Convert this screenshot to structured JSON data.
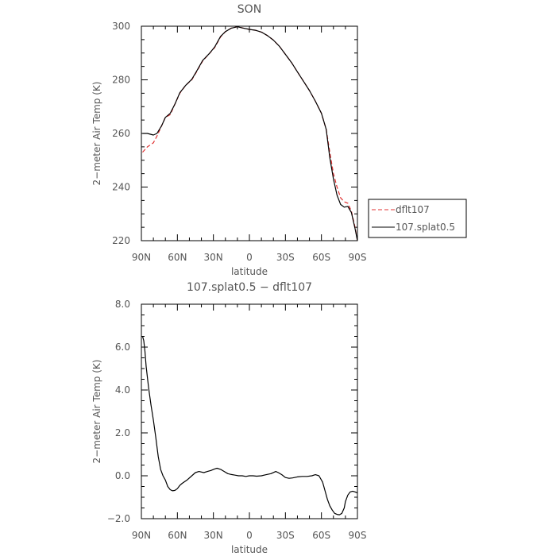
{
  "chart_data": [
    {
      "type": "line",
      "title": "SON",
      "xlabel": "latitude",
      "ylabel": "2−meter Air Temp (K)",
      "xlim": [
        90,
        -90
      ],
      "ylim": [
        220,
        300
      ],
      "xticks": [
        90,
        60,
        30,
        0,
        -30,
        -60,
        -90
      ],
      "xtick_labels": [
        "90N",
        "60N",
        "30N",
        "0",
        "30S",
        "60S",
        "90S"
      ],
      "yticks": [
        220,
        240,
        260,
        280,
        300
      ],
      "ytick_labels": [
        "220",
        "240",
        "260",
        "280",
        "300"
      ],
      "legend": {
        "position": "right",
        "entries": [
          "dflt107",
          "107.splat0.5"
        ]
      },
      "series": [
        {
          "name": "dflt107",
          "color": "#e03030",
          "style": "dashed",
          "x": [
            89,
            85,
            80,
            77,
            73,
            70,
            66,
            62,
            58,
            53,
            48,
            44,
            39,
            33,
            29,
            24,
            20,
            15,
            10,
            5,
            0,
            -5,
            -10,
            -15,
            -20,
            -25,
            -30,
            -35,
            -40,
            -45,
            -50,
            -55,
            -60,
            -64,
            -67,
            -70,
            -73,
            -76,
            -79,
            -82,
            -85,
            -88,
            -90
          ],
          "y": [
            253,
            255,
            256.5,
            259,
            263,
            266,
            267,
            271,
            275,
            278,
            280,
            283,
            287,
            290,
            292,
            296,
            298,
            299.3,
            299.8,
            299.3,
            298.8,
            298.5,
            297.8,
            296.5,
            294.8,
            292.5,
            289.5,
            286.5,
            283,
            279.5,
            276,
            272,
            267.5,
            261.5,
            253,
            245,
            240,
            236,
            234.5,
            234,
            231,
            225,
            220
          ]
        },
        {
          "name": "107.splat0.5",
          "color": "#000000",
          "style": "solid",
          "x": [
            89,
            85,
            80,
            77,
            73,
            70,
            66,
            62,
            58,
            53,
            48,
            44,
            39,
            33,
            29,
            24,
            20,
            15,
            10,
            5,
            0,
            -5,
            -10,
            -15,
            -20,
            -25,
            -30,
            -35,
            -40,
            -45,
            -50,
            -55,
            -60,
            -64,
            -67,
            -70,
            -73,
            -76,
            -79,
            -82,
            -85,
            -88,
            -90
          ],
          "y": [
            260,
            260,
            259.4,
            260,
            263,
            266,
            267.5,
            271,
            275.2,
            278,
            280.2,
            283.2,
            287.2,
            290,
            292.2,
            296.2,
            298,
            299.3,
            299.8,
            299.3,
            298.8,
            298.5,
            297.8,
            296.5,
            294.8,
            292.5,
            289.5,
            286.5,
            283,
            279.5,
            276,
            272,
            267.5,
            261.5,
            251,
            243,
            237,
            233.5,
            232.5,
            232.8,
            230.5,
            224.5,
            220
          ]
        }
      ]
    },
    {
      "type": "line",
      "title": "107.splat0.5 − dflt107",
      "xlabel": "latitude",
      "ylabel": "2−meter Air Temp (K)",
      "xlim": [
        90,
        -90
      ],
      "ylim": [
        -2,
        8
      ],
      "xticks": [
        90,
        60,
        30,
        0,
        -30,
        -60,
        -90
      ],
      "xtick_labels": [
        "90N",
        "60N",
        "30N",
        "0",
        "30S",
        "60S",
        "90S"
      ],
      "yticks": [
        -2,
        0,
        2,
        4,
        6,
        8
      ],
      "ytick_labels": [
        "−2.0",
        "0.0",
        "2.0",
        "4.0",
        "6.0",
        "8.0"
      ],
      "series": [
        {
          "name": "107.splat0.5",
          "color": "#000000",
          "style": "solid",
          "x": [
            89,
            88,
            87,
            86,
            84,
            82,
            80,
            78,
            76,
            74,
            72,
            70,
            68,
            66,
            64,
            62,
            60,
            58,
            56,
            52,
            48,
            45,
            42,
            38,
            35,
            32,
            29,
            27,
            24,
            21,
            18,
            15,
            12,
            9,
            6,
            3,
            0,
            -3,
            -6,
            -10,
            -14,
            -18,
            -22,
            -24,
            -27,
            -30,
            -33,
            -36,
            -40,
            -44,
            -48,
            -52,
            -55,
            -58,
            -61,
            -63,
            -65,
            -67,
            -69,
            -71,
            -73,
            -75,
            -77,
            -79,
            -80,
            -82,
            -84,
            -86,
            -88,
            -90
          ],
          "y": [
            6.5,
            6.3,
            5.8,
            5.1,
            4.1,
            3.3,
            2.6,
            1.8,
            0.9,
            0.3,
            0.0,
            -0.2,
            -0.5,
            -0.65,
            -0.7,
            -0.68,
            -0.6,
            -0.45,
            -0.35,
            -0.2,
            0.0,
            0.15,
            0.2,
            0.15,
            0.2,
            0.25,
            0.32,
            0.35,
            0.3,
            0.2,
            0.1,
            0.06,
            0.03,
            0.0,
            0.0,
            -0.03,
            0.0,
            0.0,
            -0.02,
            0.0,
            0.05,
            0.1,
            0.2,
            0.15,
            0.05,
            -0.08,
            -0.12,
            -0.1,
            -0.05,
            -0.03,
            -0.03,
            0.0,
            0.05,
            0.0,
            -0.3,
            -0.7,
            -1.1,
            -1.4,
            -1.6,
            -1.75,
            -1.8,
            -1.82,
            -1.75,
            -1.5,
            -1.2,
            -0.9,
            -0.75,
            -0.72,
            -0.75,
            -0.8
          ]
        }
      ]
    }
  ]
}
